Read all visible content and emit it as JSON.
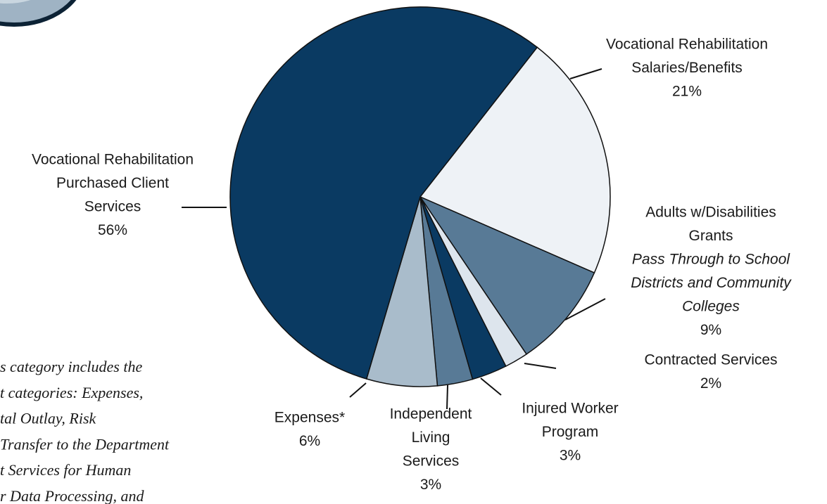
{
  "chart_data": {
    "type": "pie",
    "categories": [
      [
        "Vocational Rehabilitation",
        "Salaries/Benefits"
      ],
      [
        "Adults w/Disabilities",
        "Grants"
      ],
      [
        "Contracted Services"
      ],
      [
        "Injured Worker",
        "Program"
      ],
      [
        "Independent",
        "Living",
        "Services"
      ],
      [
        "Expenses*"
      ],
      [
        "Vocational Rehabilitation",
        "Purchased Client",
        "Services"
      ]
    ],
    "values": [
      21,
      9,
      2,
      3,
      3,
      6,
      56
    ],
    "value_labels": [
      "21%",
      "9%",
      "2%",
      "3%",
      "3%",
      "6%",
      "56%"
    ],
    "colors": [
      "#eef2f6",
      "#587a96",
      "#dde5ed",
      "#0a3a62",
      "#587a96",
      "#a9bccb",
      "#0a3a62"
    ],
    "annotation": [
      "Pass Through to School",
      "Districts and Community",
      "Colleges"
    ],
    "footnote": [
      "s category includes the",
      "t categories:  Expenses,",
      "tal Outlay, Risk",
      "Transfer to the Department",
      "t Services for Human",
      "r Data Processing, and"
    ]
  }
}
